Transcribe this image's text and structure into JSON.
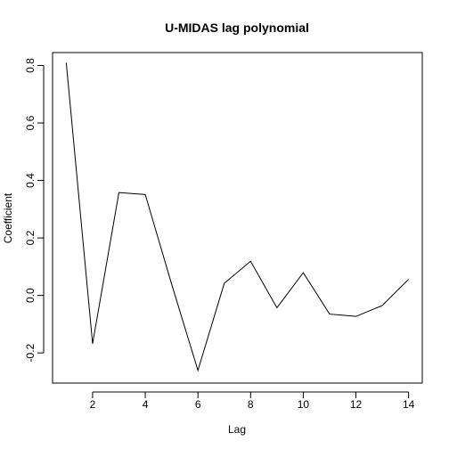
{
  "chart_data": {
    "type": "line",
    "title": "U-MIDAS lag polynomial",
    "xlabel": "Lag",
    "ylabel": "Coefficient",
    "xlim": [
      0.48,
      14.52
    ],
    "ylim": [
      -0.305,
      0.845
    ],
    "x_ticks": [
      2,
      4,
      6,
      8,
      10,
      12,
      14
    ],
    "y_ticks": [
      -0.2,
      0.0,
      0.2,
      0.4,
      0.6,
      0.8
    ],
    "x_tick_labels": [
      "2",
      "4",
      "6",
      "8",
      "10",
      "12",
      "14"
    ],
    "y_tick_labels": [
      "-0.2",
      "0.0",
      "0.2",
      "0.4",
      "0.6",
      "0.8"
    ],
    "grid": false,
    "series": [
      {
        "color": "#000000",
        "x": [
          1,
          2,
          3,
          4,
          5,
          6,
          7,
          8,
          9,
          10,
          11,
          12,
          13,
          14
        ],
        "y": [
          0.81,
          -0.168,
          0.358,
          0.351,
          0.04,
          -0.261,
          0.042,
          0.119,
          -0.043,
          0.079,
          -0.065,
          -0.073,
          -0.035,
          0.056
        ]
      }
    ]
  }
}
